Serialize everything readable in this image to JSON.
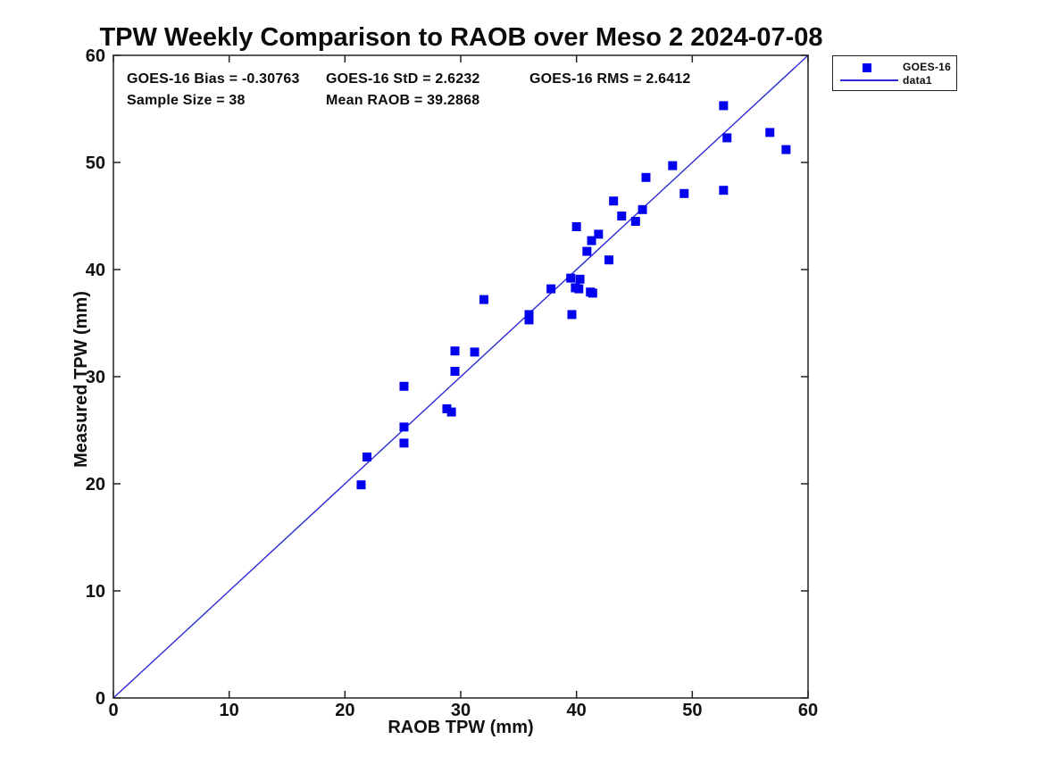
{
  "chart_data": {
    "type": "scatter",
    "title": "TPW Weekly Comparison to RAOB over Meso 2 2024-07-08",
    "xlabel": "RAOB TPW (mm)",
    "ylabel": "Measured TPW (mm)",
    "xlim": [
      0,
      60
    ],
    "ylim": [
      0,
      60
    ],
    "xticks": [
      0,
      10,
      20,
      30,
      40,
      50,
      60
    ],
    "yticks": [
      0,
      10,
      20,
      30,
      40,
      50,
      60
    ],
    "grid": false,
    "legend_position": "outside-top-right",
    "series": [
      {
        "name": "GOES-16",
        "type": "scatter",
        "marker": "square",
        "color": "#0202ee",
        "points": [
          [
            21.4,
            19.9
          ],
          [
            21.9,
            22.5
          ],
          [
            25.1,
            23.8
          ],
          [
            25.1,
            25.3
          ],
          [
            25.1,
            29.1
          ],
          [
            28.8,
            27.0
          ],
          [
            29.2,
            26.7
          ],
          [
            29.5,
            30.5
          ],
          [
            29.5,
            32.4
          ],
          [
            31.2,
            32.3
          ],
          [
            32.0,
            37.2
          ],
          [
            35.9,
            35.3
          ],
          [
            35.9,
            35.8
          ],
          [
            37.8,
            38.2
          ],
          [
            39.5,
            39.2
          ],
          [
            39.6,
            35.8
          ],
          [
            39.9,
            38.3
          ],
          [
            40.0,
            44.0
          ],
          [
            40.2,
            38.2
          ],
          [
            40.3,
            39.1
          ],
          [
            40.9,
            41.7
          ],
          [
            41.2,
            37.9
          ],
          [
            41.3,
            42.7
          ],
          [
            41.4,
            37.8
          ],
          [
            41.9,
            43.3
          ],
          [
            42.8,
            40.9
          ],
          [
            43.2,
            46.4
          ],
          [
            43.9,
            45.0
          ],
          [
            45.1,
            44.5
          ],
          [
            45.7,
            45.6
          ],
          [
            46.0,
            48.6
          ],
          [
            48.3,
            49.7
          ],
          [
            49.3,
            47.1
          ],
          [
            52.7,
            47.4
          ],
          [
            52.7,
            55.3
          ],
          [
            53.0,
            52.3
          ],
          [
            56.7,
            52.8
          ],
          [
            58.1,
            51.2
          ]
        ]
      },
      {
        "name": "data1",
        "type": "line",
        "color": "#2b2bd5",
        "points": [
          [
            0,
            0
          ],
          [
            60,
            60
          ]
        ]
      }
    ]
  },
  "stats": {
    "bias": "GOES-16 Bias = -0.30763",
    "std": "GOES-16 StD = 2.6232",
    "rms": "GOES-16 RMS = 2.6412",
    "sample_size": "Sample Size = 38",
    "mean_raob": "Mean RAOB = 39.2868"
  },
  "legend": {
    "entries": [
      {
        "label": "GOES-16",
        "marker": "square"
      },
      {
        "label": "data1",
        "marker": "line"
      }
    ]
  },
  "colors": {
    "marker": "#0202ee",
    "line": "#2b2bd5",
    "axis": "#222222",
    "text": "#111111",
    "background": "#ffffff"
  }
}
